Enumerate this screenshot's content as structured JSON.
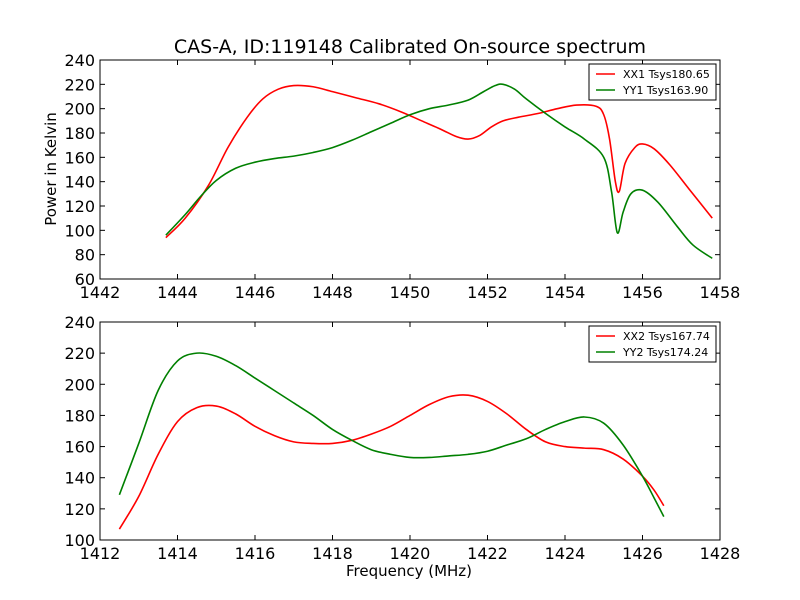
{
  "figure": {
    "title": "CAS-A, ID:119148 Calibrated On-source spectrum",
    "xlabel": "Frequency (MHz)",
    "ylabel": "Power in Kelvin"
  },
  "chart_data": [
    {
      "type": "line",
      "title": "CAS-A, ID:119148 Calibrated On-source spectrum",
      "xlabel": "",
      "ylabel": "Power in Kelvin",
      "xlim": [
        1442,
        1458
      ],
      "ylim": [
        60,
        240
      ],
      "xticks": [
        "1442",
        "1444",
        "1446",
        "1448",
        "1450",
        "1452",
        "1454",
        "1456",
        "1458"
      ],
      "yticks": [
        "60",
        "80",
        "100",
        "120",
        "140",
        "160",
        "180",
        "200",
        "220",
        "240"
      ],
      "grid": false,
      "legend_position": "top-right",
      "series": [
        {
          "name": "XX1 Tsys180.65",
          "color": "#ff0000",
          "x": [
            1443.7,
            1444.2,
            1444.8,
            1445.3,
            1445.8,
            1446.2,
            1446.6,
            1447.0,
            1447.5,
            1448.0,
            1448.6,
            1449.2,
            1449.8,
            1450.3,
            1450.8,
            1451.2,
            1451.5,
            1451.8,
            1452.1,
            1452.4,
            1452.8,
            1453.3,
            1453.8,
            1454.3,
            1454.8,
            1455.0,
            1455.15,
            1455.3,
            1455.4,
            1455.55,
            1455.8,
            1456.0,
            1456.3,
            1456.7,
            1457.2,
            1457.8
          ],
          "y": [
            94,
            110,
            137,
            168,
            193,
            208,
            216,
            219,
            218,
            214,
            209,
            204,
            197,
            190,
            183,
            177,
            175,
            178,
            185,
            190,
            193,
            196,
            200,
            203,
            202,
            195,
            175,
            140,
            132,
            155,
            168,
            171,
            167,
            154,
            134,
            110
          ]
        },
        {
          "name": "YY1 Tsys163.90",
          "color": "#008000",
          "x": [
            1443.7,
            1444.2,
            1444.6,
            1445.0,
            1445.5,
            1446.0,
            1446.5,
            1447.0,
            1447.5,
            1448.0,
            1448.5,
            1449.0,
            1449.5,
            1450.0,
            1450.5,
            1451.0,
            1451.5,
            1451.9,
            1452.2,
            1452.4,
            1452.7,
            1453.0,
            1453.5,
            1454.0,
            1454.5,
            1455.0,
            1455.2,
            1455.35,
            1455.5,
            1455.7,
            1456.0,
            1456.4,
            1456.9,
            1457.3,
            1457.8
          ],
          "y": [
            96,
            113,
            128,
            141,
            151,
            156,
            159,
            161,
            164,
            168,
            174,
            181,
            188,
            195,
            200,
            203,
            207,
            214,
            219,
            220,
            216,
            208,
            196,
            185,
            175,
            160,
            132,
            98,
            115,
            130,
            133,
            123,
            103,
            88,
            77
          ]
        }
      ]
    },
    {
      "type": "line",
      "title": "",
      "xlabel": "Frequency (MHz)",
      "ylabel": "",
      "xlim": [
        1412,
        1428
      ],
      "ylim": [
        100,
        240
      ],
      "xticks": [
        "1412",
        "1414",
        "1416",
        "1418",
        "1420",
        "1422",
        "1424",
        "1426",
        "1428"
      ],
      "yticks": [
        "100",
        "120",
        "140",
        "160",
        "180",
        "200",
        "220",
        "240"
      ],
      "grid": false,
      "legend_position": "top-right",
      "series": [
        {
          "name": "XX2 Tsys167.74",
          "color": "#ff0000",
          "x": [
            1412.5,
            1413.0,
            1413.5,
            1414.0,
            1414.5,
            1415.0,
            1415.5,
            1416.0,
            1416.5,
            1417.0,
            1417.5,
            1418.0,
            1418.5,
            1419.0,
            1419.5,
            1420.0,
            1420.5,
            1421.0,
            1421.5,
            1422.0,
            1422.5,
            1423.0,
            1423.5,
            1424.0,
            1424.5,
            1425.0,
            1425.5,
            1426.0,
            1426.3,
            1426.55
          ],
          "y": [
            107,
            128,
            155,
            176,
            185,
            186,
            181,
            173,
            167,
            163,
            162,
            162,
            164,
            168,
            173,
            180,
            187,
            192,
            193,
            189,
            181,
            171,
            163,
            160,
            159,
            158,
            152,
            141,
            132,
            122
          ]
        },
        {
          "name": "YY2 Tsys174.24",
          "color": "#008000",
          "x": [
            1412.5,
            1413.0,
            1413.5,
            1414.0,
            1414.5,
            1415.0,
            1415.5,
            1416.0,
            1416.5,
            1417.0,
            1417.5,
            1418.0,
            1418.5,
            1419.0,
            1419.5,
            1420.0,
            1420.5,
            1421.0,
            1421.5,
            1422.0,
            1422.5,
            1423.0,
            1423.5,
            1424.0,
            1424.5,
            1425.0,
            1425.5,
            1426.0,
            1426.3,
            1426.55
          ],
          "y": [
            129,
            162,
            196,
            215,
            220,
            218,
            212,
            204,
            196,
            188,
            180,
            171,
            164,
            158,
            155,
            153,
            153,
            154,
            155,
            157,
            161,
            165,
            171,
            176,
            179,
            175,
            161,
            141,
            127,
            115
          ]
        }
      ]
    }
  ]
}
